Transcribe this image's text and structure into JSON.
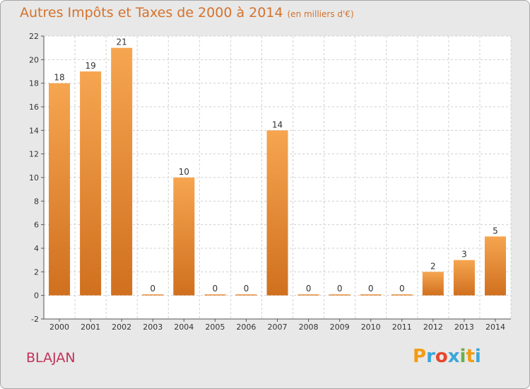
{
  "header": {
    "title": "Autres Impôts et Taxes de 2000 à 2014",
    "subtitle": "(en milliers d'€)"
  },
  "footer": {
    "commune": "BLAJAN",
    "logo_text": "Proxiti",
    "logo_letters": [
      "P",
      "r",
      "o",
      "x",
      "i",
      "t",
      "i"
    ],
    "logo_colors": [
      "#f39c12",
      "#3aa7d8",
      "#e8452c",
      "#3aa7d8",
      "#6ab04c",
      "#f39c12",
      "#3aa7d8"
    ]
  },
  "colors": {
    "bar_light": "#f6a550",
    "bar_dark": "#d0701f",
    "title": "#d4722c",
    "commune": "#c0325a",
    "plot_bg": "#ffffff",
    "grid": "#cfcfcf"
  },
  "chart_data": {
    "type": "bar",
    "title": "Autres Impôts et Taxes de 2000 à 2014",
    "subtitle": "(en milliers d'€)",
    "categories": [
      "2000",
      "2001",
      "2002",
      "2003",
      "2004",
      "2005",
      "2006",
      "2007",
      "2008",
      "2009",
      "2010",
      "2011",
      "2012",
      "2013",
      "2014"
    ],
    "values": [
      18,
      19,
      21,
      0,
      10,
      0,
      0,
      14,
      0,
      0,
      0,
      0,
      2,
      3,
      5
    ],
    "ylim": [
      -2,
      22
    ],
    "yticks": [
      -2,
      0,
      2,
      4,
      6,
      8,
      10,
      12,
      14,
      16,
      18,
      20,
      22
    ],
    "xlabel": "",
    "ylabel": "",
    "grid": true,
    "data_labels": true
  }
}
